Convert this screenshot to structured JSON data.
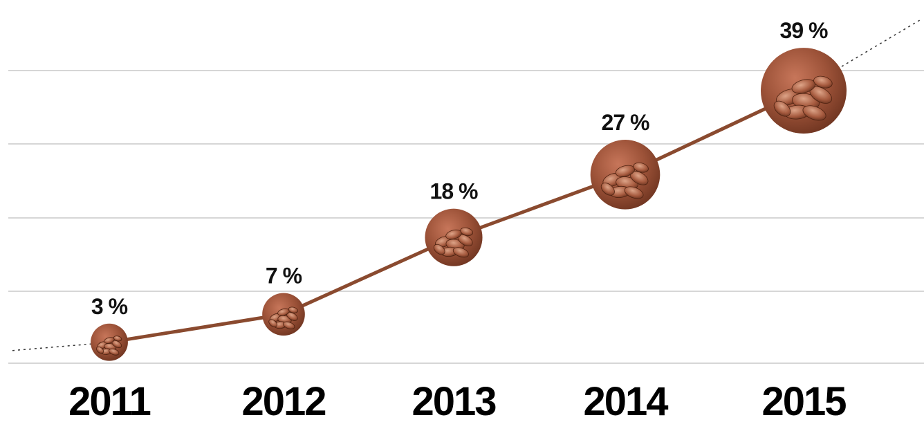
{
  "chart_data": {
    "type": "line",
    "categories": [
      "2011",
      "2012",
      "2013",
      "2014",
      "2015"
    ],
    "values": [
      3,
      7,
      18,
      27,
      39
    ],
    "value_labels": [
      "3 %",
      "7 %",
      "18 %",
      "27 %",
      "39 %"
    ],
    "title": "",
    "xlabel": "",
    "ylabel": "",
    "ylim": [
      0,
      50
    ],
    "grid": true,
    "legend": "none",
    "markers": "cocoa-bean-circles",
    "colors": {
      "line": "#8a4a2f",
      "marker": "#9c5238",
      "marker_dark": "#6e3420",
      "grid": "#c8c8c8"
    }
  }
}
